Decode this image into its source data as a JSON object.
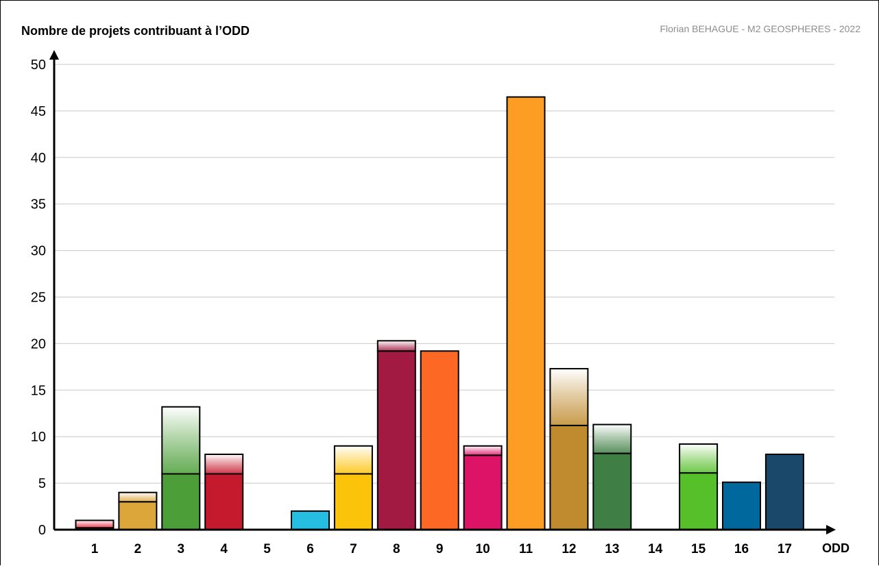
{
  "header": {
    "y_axis_title": "Nombre de projets contribuant à l’ODD",
    "credit": "Florian BEHAGUE - M2 GEOSPHERES - 2022",
    "x_axis_title": "ODD"
  },
  "colors": {
    "1": "#e5243b",
    "2": "#dda63a",
    "3": "#4c9f38",
    "4": "#c5192d",
    "5": "#ff3a21",
    "6": "#26bde2",
    "7": "#fcc30b",
    "8": "#a21942",
    "9": "#fd6925",
    "10": "#dd1367",
    "11": "#fd9d24",
    "12": "#bf8b2e",
    "13": "#3f7e44",
    "14": "#0a97d9",
    "15": "#56c02b",
    "16": "#00689d",
    "17": "#19486a"
  },
  "chart_data": {
    "type": "bar",
    "title": "",
    "xlabel": "ODD",
    "ylabel": "Nombre de projets contribuant à l’ODD",
    "ylim": [
      0,
      50
    ],
    "yticks": [
      0,
      5,
      10,
      15,
      20,
      25,
      30,
      35,
      40,
      45,
      50
    ],
    "grid": true,
    "categories": [
      "1",
      "2",
      "3",
      "4",
      "5",
      "6",
      "7",
      "8",
      "9",
      "10",
      "11",
      "12",
      "13",
      "14",
      "15",
      "16",
      "17"
    ],
    "series": [
      {
        "values": [
          0.2,
          3,
          6,
          6,
          0,
          2,
          6,
          19.2,
          19.2,
          8,
          46.5,
          11.2,
          8.2,
          0,
          6.1,
          5.1,
          8.1
        ]
      },
      {
        "values": [
          0.8,
          1,
          7.2,
          2.1,
          0,
          0,
          3,
          1.1,
          0,
          1,
          0,
          6.1,
          3.1,
          0,
          3.1,
          0,
          0
        ]
      }
    ]
  }
}
